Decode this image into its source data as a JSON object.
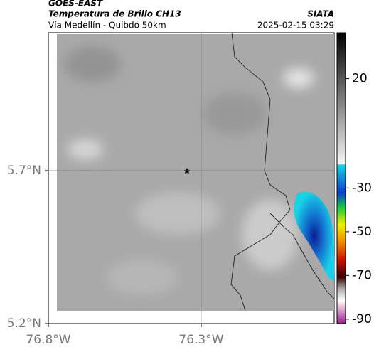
{
  "header": {
    "source": "GOES-EAST",
    "title": "Temperatura de Brillo CH13",
    "subtitle": "Vía Medellín - Quibdó 50km",
    "agency": "SIATA",
    "timestamp": "2025-02-15 03:29"
  },
  "map": {
    "xlim": [
      -76.8,
      -75.865
    ],
    "ylim": [
      5.2,
      6.151
    ],
    "xticks": [
      {
        "value": -76.8,
        "label": "76.8°W"
      },
      {
        "value": -76.3,
        "label": "76.3°W"
      }
    ],
    "yticks": [
      {
        "value": 5.2,
        "label": "5.2°N"
      },
      {
        "value": 5.7,
        "label": "5.7°N"
      }
    ]
  },
  "colorbar": {
    "lim": [
      -92,
      41
    ],
    "ticks": [
      20,
      -30,
      -50,
      -70,
      -90
    ]
  }
}
